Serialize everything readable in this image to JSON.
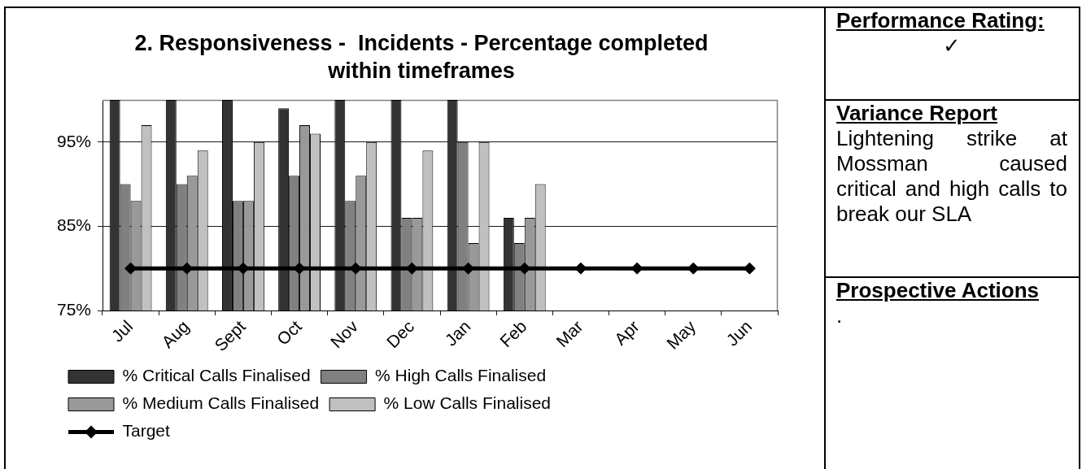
{
  "chart_data": [
    {
      "type": "bar",
      "title": "2. Responsiveness -  Incidents - Percentage completed within timeframes",
      "categories": [
        "Jul",
        "Aug",
        "Sept",
        "Oct",
        "Nov",
        "Dec",
        "Jan",
        "Feb",
        "Mar",
        "Apr",
        "May",
        "Jun"
      ],
      "series": [
        {
          "name": "% Critical Calls Finalised",
          "type": "bar",
          "color": "#333333",
          "values": [
            100,
            100,
            100,
            99,
            100,
            100,
            100,
            86,
            null,
            null,
            null,
            null
          ]
        },
        {
          "name": "% High Calls Finalised",
          "type": "bar",
          "color": "#808080",
          "values": [
            90,
            90,
            88,
            91,
            88,
            86,
            95,
            83,
            null,
            null,
            null,
            null
          ]
        },
        {
          "name": "% Medium Calls Finalised",
          "type": "bar",
          "color": "#999999",
          "values": [
            88,
            91,
            88,
            97,
            91,
            86,
            83,
            86,
            null,
            null,
            null,
            null
          ]
        },
        {
          "name": "% Low Calls Finalised",
          "type": "bar",
          "color": "#c0c0c0",
          "values": [
            97,
            94,
            95,
            96,
            95,
            94,
            95,
            90,
            null,
            null,
            null,
            null
          ]
        },
        {
          "name": "Target",
          "type": "line",
          "color": "#000000",
          "values": [
            80,
            80,
            80,
            80,
            80,
            80,
            80,
            80,
            80,
            80,
            80,
            80
          ]
        }
      ],
      "ylim": [
        75,
        100
      ],
      "yticks": [
        {
          "value": 75,
          "label": "75%"
        },
        {
          "value": 85,
          "label": "85%"
        },
        {
          "value": 95,
          "label": "95%"
        }
      ],
      "grid": "y",
      "legend": "bottom",
      "marker": "diamond"
    },
    {
      "type": "other",
      "annotations": [
        "Performance Rating:",
        "✓",
        "Variance Report",
        "Lightening strike at Mossman caused critical and high calls to break our SLA",
        "Prospective Actions",
        "."
      ]
    }
  ]
}
